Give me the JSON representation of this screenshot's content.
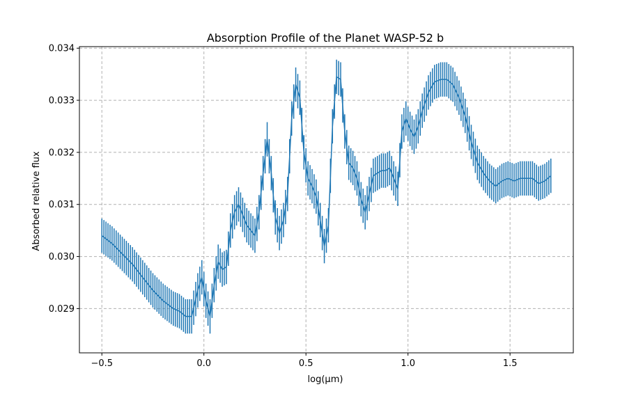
{
  "chart_data": {
    "type": "line",
    "title": "Absorption Profile of the Planet WASP-52 b",
    "xlabel": "log(μm)",
    "ylabel": "Absorbed relative flux",
    "xlim": [
      -0.61,
      1.81
    ],
    "ylim": [
      0.02815,
      0.03403
    ],
    "grid": true,
    "line_color": "#1f77b4",
    "x_ticks": [
      {
        "value": -0.5,
        "label": "−0.5"
      },
      {
        "value": 0.0,
        "label": "0.0"
      },
      {
        "value": 0.5,
        "label": "0.5"
      },
      {
        "value": 1.0,
        "label": "1.0"
      },
      {
        "value": 1.5,
        "label": "1.5"
      }
    ],
    "y_ticks": [
      {
        "value": 0.029,
        "label": "0.029"
      },
      {
        "value": 0.03,
        "label": "0.030"
      },
      {
        "value": 0.031,
        "label": "0.031"
      },
      {
        "value": 0.032,
        "label": "0.032"
      },
      {
        "value": 0.033,
        "label": "0.033"
      },
      {
        "value": 0.034,
        "label": "0.034"
      }
    ],
    "series": [
      {
        "points": [
          [
            -0.5,
            0.0304
          ],
          [
            -0.45,
            0.03025
          ],
          [
            -0.4,
            0.03005
          ],
          [
            -0.35,
            0.02985
          ],
          [
            -0.3,
            0.0296
          ],
          [
            -0.25,
            0.02935
          ],
          [
            -0.2,
            0.02915
          ],
          [
            -0.15,
            0.029
          ],
          [
            -0.12,
            0.02895
          ],
          [
            -0.09,
            0.02885
          ],
          [
            -0.06,
            0.02885
          ],
          [
            -0.03,
            0.02935
          ],
          [
            -0.01,
            0.0296
          ],
          [
            0.01,
            0.02915
          ],
          [
            0.03,
            0.02885
          ],
          [
            0.05,
            0.02945
          ],
          [
            0.07,
            0.0299
          ],
          [
            0.09,
            0.02975
          ],
          [
            0.11,
            0.0298
          ],
          [
            0.13,
            0.0305
          ],
          [
            0.15,
            0.03085
          ],
          [
            0.17,
            0.031
          ],
          [
            0.19,
            0.0308
          ],
          [
            0.21,
            0.0306
          ],
          [
            0.23,
            0.0305
          ],
          [
            0.25,
            0.0304
          ],
          [
            0.27,
            0.03085
          ],
          [
            0.29,
            0.0316
          ],
          [
            0.31,
            0.03225
          ],
          [
            0.33,
            0.0316
          ],
          [
            0.35,
            0.03075
          ],
          [
            0.37,
            0.03045
          ],
          [
            0.39,
            0.0307
          ],
          [
            0.41,
            0.0312
          ],
          [
            0.43,
            0.03265
          ],
          [
            0.45,
            0.0333
          ],
          [
            0.47,
            0.03305
          ],
          [
            0.49,
            0.032
          ],
          [
            0.51,
            0.0315
          ],
          [
            0.53,
            0.03135
          ],
          [
            0.55,
            0.03115
          ],
          [
            0.57,
            0.0307
          ],
          [
            0.59,
            0.0302
          ],
          [
            0.61,
            0.0306
          ],
          [
            0.63,
            0.0325
          ],
          [
            0.65,
            0.03345
          ],
          [
            0.67,
            0.0334
          ],
          [
            0.69,
            0.0324
          ],
          [
            0.71,
            0.0318
          ],
          [
            0.73,
            0.0317
          ],
          [
            0.75,
            0.0315
          ],
          [
            0.77,
            0.0311
          ],
          [
            0.79,
            0.03085
          ],
          [
            0.81,
            0.0312
          ],
          [
            0.83,
            0.03155
          ],
          [
            0.85,
            0.0316
          ],
          [
            0.87,
            0.03165
          ],
          [
            0.89,
            0.03165
          ],
          [
            0.91,
            0.0317
          ],
          [
            0.93,
            0.0315
          ],
          [
            0.95,
            0.0313
          ],
          [
            0.97,
            0.0324
          ],
          [
            0.99,
            0.03265
          ],
          [
            1.01,
            0.03245
          ],
          [
            1.03,
            0.0323
          ],
          [
            1.05,
            0.0325
          ],
          [
            1.07,
            0.0328
          ],
          [
            1.1,
            0.03315
          ],
          [
            1.13,
            0.03335
          ],
          [
            1.16,
            0.0334
          ],
          [
            1.19,
            0.0334
          ],
          [
            1.22,
            0.0333
          ],
          [
            1.25,
            0.03305
          ],
          [
            1.28,
            0.0327
          ],
          [
            1.31,
            0.0322
          ],
          [
            1.34,
            0.0318
          ],
          [
            1.37,
            0.0316
          ],
          [
            1.4,
            0.03145
          ],
          [
            1.43,
            0.03135
          ],
          [
            1.46,
            0.03145
          ],
          [
            1.49,
            0.0315
          ],
          [
            1.52,
            0.03145
          ],
          [
            1.55,
            0.0315
          ],
          [
            1.58,
            0.0315
          ],
          [
            1.61,
            0.0315
          ],
          [
            1.64,
            0.0314
          ],
          [
            1.67,
            0.03145
          ],
          [
            1.7,
            0.03155
          ]
        ],
        "errors": [
          0.00033,
          0.00033,
          0.00033,
          0.00033,
          0.00033,
          0.00033,
          0.00033,
          0.00033,
          0.00033,
          0.00033,
          0.00033,
          0.00033,
          0.00033,
          0.00033,
          0.00033,
          0.00033,
          0.00033,
          0.00033,
          0.00033,
          0.00033,
          0.00033,
          0.00033,
          0.00033,
          0.00033,
          0.00033,
          0.00033,
          0.00033,
          0.00033,
          0.00033,
          0.00033,
          0.00033,
          0.00033,
          0.00033,
          0.00033,
          0.00033,
          0.00033,
          0.00033,
          0.00033,
          0.00033,
          0.00033,
          0.00033,
          0.00033,
          0.00033,
          0.00033,
          0.00033,
          0.00033,
          0.00033,
          0.00033,
          0.00033,
          0.00033,
          0.00033,
          0.00033,
          0.00033,
          0.00033,
          0.00033,
          0.00033,
          0.00033,
          0.00033,
          0.00033,
          0.00033,
          0.00033,
          0.00033,
          0.00033,
          0.00033,
          0.00033,
          0.00033,
          0.00033,
          0.00033,
          0.00033,
          0.00033,
          0.00033,
          0.00033,
          0.00033,
          0.00033,
          0.00033,
          0.00033,
          0.00033,
          0.00033,
          0.00033,
          0.00033,
          0.00033,
          0.00033,
          0.00033,
          0.00033,
          0.00033,
          0.00033,
          0.00033,
          0.00033
        ]
      }
    ]
  }
}
